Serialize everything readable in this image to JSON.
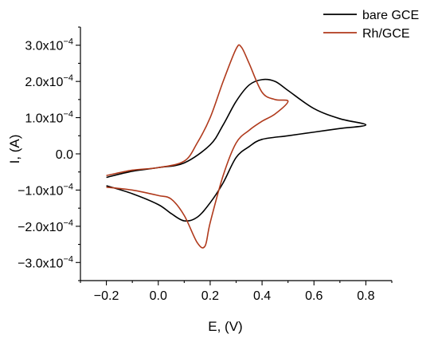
{
  "chart_data": {
    "type": "line",
    "xlabel": "E, (V)",
    "ylabel": "I, (A)",
    "xlim": [
      -0.3,
      0.9
    ],
    "ylim": [
      -0.00035,
      0.00035
    ],
    "x_ticks": [
      -0.2,
      0.0,
      0.2,
      0.4,
      0.6,
      0.8
    ],
    "x_tick_labels": [
      "−0.2",
      "0.0",
      "0.2",
      "0.4",
      "0.6",
      "0.8"
    ],
    "y_ticks": [
      -0.0003,
      -0.0002,
      -0.0001,
      0,
      0.0001,
      0.0002,
      0.0003
    ],
    "y_tick_labels": [
      {
        "mantissa": "−3.0x10",
        "exp": "−4"
      },
      {
        "mantissa": "−2.0x10",
        "exp": "−4"
      },
      {
        "mantissa": "−1.0x10",
        "exp": "−4"
      },
      {
        "mantissa": "0.0",
        "exp": ""
      },
      {
        "mantissa": "1.0x10",
        "exp": "−4"
      },
      {
        "mantissa": "2.0x10",
        "exp": "−4"
      },
      {
        "mantissa": "3.0x10",
        "exp": "−4"
      }
    ],
    "grid": false,
    "legend_position": "top-right",
    "series": [
      {
        "name": "bare GCE",
        "color": "#000000",
        "x": [
          -0.2,
          -0.1,
          0.0,
          0.1,
          0.2,
          0.25,
          0.3,
          0.35,
          0.4,
          0.45,
          0.5,
          0.6,
          0.7,
          0.8,
          0.7,
          0.6,
          0.5,
          0.4,
          0.35,
          0.3,
          0.25,
          0.2,
          0.15,
          0.1,
          0.05,
          0.0,
          -0.1,
          -0.2
        ],
        "y": [
          -6.5e-05,
          -4.8e-05,
          -3.8e-05,
          -2.5e-05,
          2.5e-05,
          8e-05,
          0.000145,
          0.00019,
          0.000205,
          0.0002,
          0.000175,
          0.000125,
          9.7e-05,
          8e-05,
          7e-05,
          6e-05,
          5e-05,
          4e-05,
          2e-05,
          -1e-05,
          -8e-05,
          -0.000135,
          -0.000175,
          -0.000185,
          -0.000165,
          -0.00014,
          -0.00011,
          -8.8e-05
        ]
      },
      {
        "name": "Rh/GCE",
        "color": "#b03a1c",
        "x": [
          -0.2,
          -0.1,
          0.0,
          0.1,
          0.15,
          0.2,
          0.25,
          0.3,
          0.32,
          0.35,
          0.4,
          0.45,
          0.5,
          0.45,
          0.4,
          0.35,
          0.3,
          0.25,
          0.2,
          0.18,
          0.15,
          0.1,
          0.05,
          0.0,
          -0.1,
          -0.2
        ],
        "y": [
          -6e-05,
          -4.5e-05,
          -3.8e-05,
          -2e-05,
          3e-05,
          0.0001,
          0.0002,
          0.00029,
          0.000295,
          0.00025,
          0.00017,
          0.00015,
          0.000145,
          0.00011,
          9e-05,
          6.5e-05,
          3e-05,
          -6e-05,
          -0.00019,
          -0.000255,
          -0.000245,
          -0.00017,
          -0.000125,
          -0.000115,
          -0.0001,
          -9.2e-05
        ]
      }
    ]
  }
}
